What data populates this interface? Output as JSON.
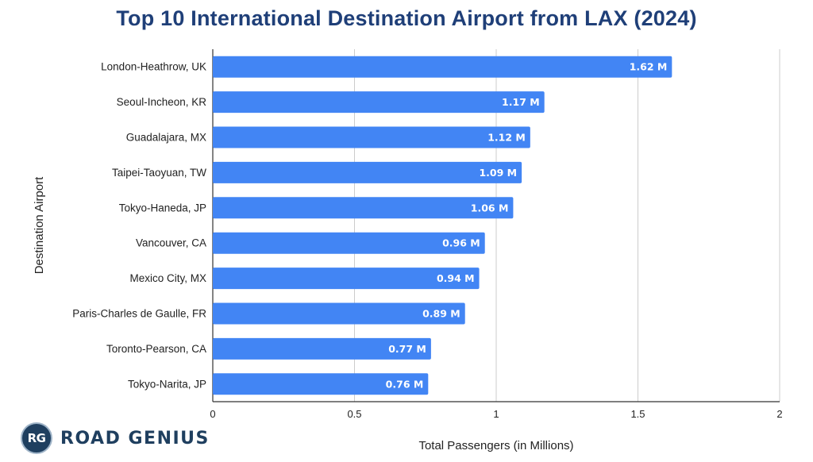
{
  "chart_data": {
    "type": "bar",
    "orientation": "horizontal",
    "title": "Top 10 International Destination Airport from LAX (2024)",
    "xlabel": "Total Passengers (in Millions)",
    "ylabel": "Destination Airport",
    "categories": [
      "London-Heathrow, UK",
      "Seoul-Incheon, KR",
      "Guadalajara, MX",
      "Taipei-Taoyuan, TW",
      "Tokyo-Haneda, JP",
      "Vancouver, CA",
      "Mexico City, MX",
      "Paris-Charles de Gaulle, FR",
      "Toronto-Pearson, CA",
      "Tokyo-Narita, JP"
    ],
    "values": [
      1.62,
      1.17,
      1.12,
      1.09,
      1.06,
      0.96,
      0.94,
      0.89,
      0.77,
      0.76
    ],
    "data_labels": [
      "1.62 M",
      "1.17 M",
      "1.12 M",
      "1.09 M",
      "1.06 M",
      "0.96 M",
      "0.94 M",
      "0.89 M",
      "0.77 M",
      "0.76 M"
    ],
    "xlim": [
      0,
      2
    ],
    "xticks": [
      0,
      0.5,
      1,
      1.5,
      2
    ],
    "xtick_labels": [
      "0",
      "0.5",
      "1",
      "1.5",
      "2"
    ],
    "grid": true,
    "legend": "none",
    "bar_color": "#4285f4",
    "title_color": "#1f3f78"
  },
  "branding": {
    "logo_initials": "RG",
    "name": "ROAD GENIUS",
    "color": "#1f3f5f"
  }
}
